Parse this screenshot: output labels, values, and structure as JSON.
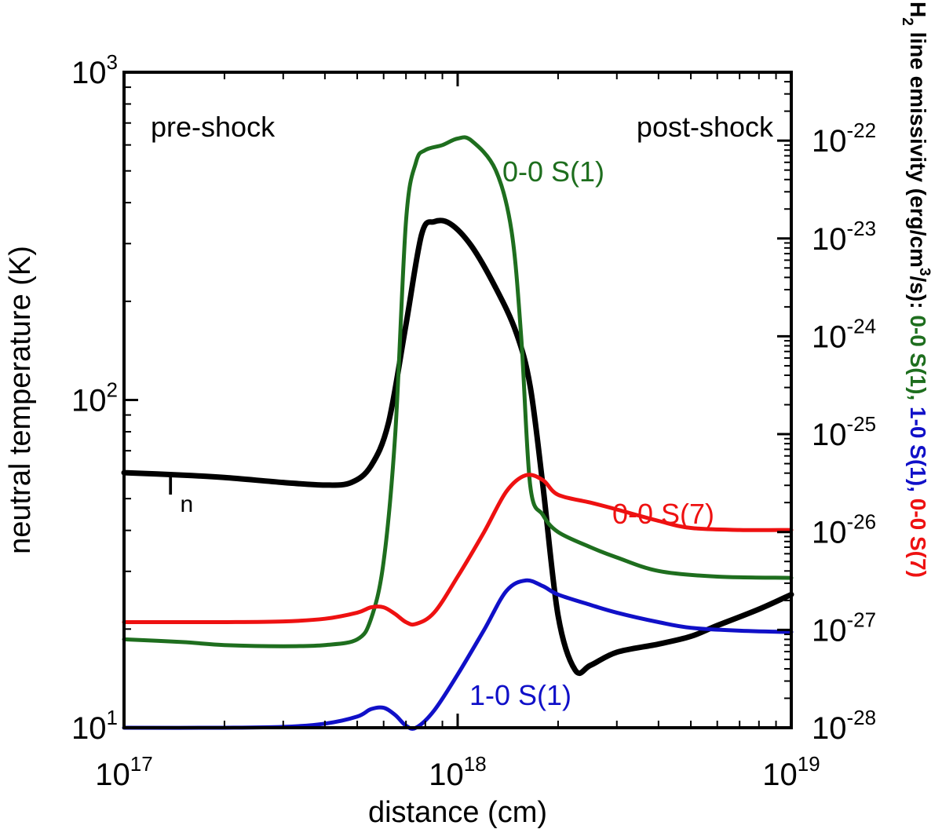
{
  "chart_data": {
    "type": "line",
    "title": "",
    "xlabel": "distance (cm)",
    "ylabel": "neutral temperature (K)",
    "y2label": {
      "prefix": "H",
      "prefix_sub": "2",
      "text_a": " line emissivity (erg/cm",
      "text_sup": "3",
      "text_b": "/s): ",
      "parts": [
        {
          "text": "0-0 S(1)",
          "color": "#1e6e1e"
        },
        {
          "text": ", ",
          "color": "#1e6e1e"
        },
        {
          "text": "1-0 S(1)",
          "color": "#1010c8"
        },
        {
          "text": ", ",
          "color": "#1010c8"
        },
        {
          "text": "0-0 S(7)",
          "color": "#ee1111"
        }
      ]
    },
    "x_scale": "log",
    "xlim": [
      1e+17,
      1e+19
    ],
    "y_scale": "log",
    "ylim": [
      10,
      1000
    ],
    "y2_scale": "log",
    "y2lim": [
      1e-28,
      5e-22
    ],
    "x_ticks": [
      {
        "base": "10",
        "exp": "17"
      },
      {
        "base": "10",
        "exp": "18"
      },
      {
        "base": "10",
        "exp": "19"
      }
    ],
    "y_ticks": [
      {
        "base": "10",
        "exp": "1"
      },
      {
        "base": "10",
        "exp": "2"
      },
      {
        "base": "10",
        "exp": "3"
      }
    ],
    "y2_ticks": [
      {
        "base": "10",
        "exp": "-28"
      },
      {
        "base": "10",
        "exp": "-27"
      },
      {
        "base": "10",
        "exp": "-26"
      },
      {
        "base": "10",
        "exp": "-25"
      },
      {
        "base": "10",
        "exp": "-24"
      },
      {
        "base": "10",
        "exp": "-23"
      },
      {
        "base": "10",
        "exp": "-22"
      }
    ],
    "series": [
      {
        "name": "T_n",
        "axis": "left",
        "color": "#000000",
        "x": [
          1e+17,
          1.5e+17,
          2e+17,
          3e+17,
          4e+17,
          4.8e+17,
          5.5e+17,
          6.2e+17,
          7e+17,
          7.8e+17,
          8.5e+17,
          9.5e+17,
          1.1e+18,
          1.3e+18,
          1.5e+18,
          1.65e+18,
          1.8e+18,
          2e+18,
          2.25e+18,
          2.5e+18,
          3e+18,
          4e+18,
          5e+18,
          6e+18,
          8e+18,
          1e+19
        ],
        "y": [
          60,
          59,
          58,
          56,
          55,
          56,
          63,
          85,
          170,
          320,
          350,
          345,
          295,
          220,
          160,
          110,
          55,
          22,
          15,
          15.5,
          17,
          18,
          19,
          20.5,
          23,
          25.5
        ]
      },
      {
        "name": "0-0 S(1)",
        "axis": "right",
        "color": "#1e6e1e",
        "x": [
          1e+17,
          1.5e+17,
          2e+17,
          3e+17,
          4e+17,
          5e+17,
          5.5e+17,
          6e+17,
          6.5e+17,
          7e+17,
          7.5e+17,
          8e+17,
          9e+17,
          1e+18,
          1.1e+18,
          1.3e+18,
          1.45e+18,
          1.55e+18,
          1.65e+18,
          1.8e+18,
          2e+18,
          2.5e+18,
          3e+18,
          4e+18,
          6e+18,
          1e+19
        ],
        "y": [
          8e-28,
          7.5e-28,
          7e-28,
          6.8e-28,
          7e-28,
          8e-28,
          1.3e-27,
          5e-27,
          1e-25,
          1.5e-23,
          6e-23,
          8e-23,
          9e-23,
          1.05e-22,
          1e-22,
          5e-23,
          1.2e-23,
          1e-24,
          3e-26,
          1.5e-26,
          1e-26,
          7e-27,
          5.5e-27,
          4e-27,
          3.5e-27,
          3.4e-27
        ]
      },
      {
        "name": "1-0 S(1)",
        "axis": "right",
        "color": "#1010c8",
        "x": [
          1e+17,
          2e+17,
          3e+17,
          4e+17,
          5e+17,
          5.5e+17,
          6e+17,
          6.5e+17,
          7e+17,
          7.5e+17,
          8.5e+17,
          1e+18,
          1.2e+18,
          1.4e+18,
          1.6e+18,
          1.8e+18,
          2e+18,
          2.5e+18,
          3e+18,
          4e+18,
          5e+18,
          7e+18,
          1e+19
        ],
        "y": [
          1e-28,
          1e-28,
          1.02e-28,
          1.1e-28,
          1.3e-28,
          1.55e-28,
          1.6e-28,
          1.35e-28,
          1.05e-28,
          1e-28,
          1.5e-28,
          3.5e-28,
          1e-27,
          2.5e-27,
          3.2e-27,
          2.8e-27,
          2.3e-27,
          1.8e-27,
          1.5e-27,
          1.2e-27,
          1.05e-27,
          9.8e-28,
          9.5e-28
        ]
      },
      {
        "name": "0-0 S(7)",
        "axis": "right",
        "color": "#ee1111",
        "x": [
          1e+17,
          2e+17,
          3e+17,
          4e+17,
          5e+17,
          5.5e+17,
          6e+17,
          6.5e+17,
          7e+17,
          7.5e+17,
          8.5e+17,
          1e+18,
          1.2e+18,
          1.4e+18,
          1.6e+18,
          1.8e+18,
          2e+18,
          2.5e+18,
          3e+18,
          4e+18,
          5e+18,
          7e+18,
          1e+19
        ],
        "y": [
          1.2e-27,
          1.2e-27,
          1.22e-27,
          1.3e-27,
          1.5e-27,
          1.7e-27,
          1.7e-27,
          1.45e-27,
          1.2e-27,
          1.15e-27,
          1.5e-27,
          3.5e-27,
          1e-26,
          2.6e-26,
          3.8e-26,
          3.4e-26,
          2.4e-26,
          2e-26,
          1.7e-26,
          1.3e-26,
          1.1e-26,
          1.05e-26,
          1.05e-26
        ]
      }
    ],
    "annotations": [
      {
        "text": "pre-shock",
        "color": "#000000"
      },
      {
        "text": "post-shock",
        "color": "#000000"
      },
      {
        "text": "0-0 S(1)",
        "color": "#1e6e1e"
      },
      {
        "text": "0-0 S(7)",
        "color": "#ee1111"
      },
      {
        "text": "1-0 S(1)",
        "color": "#1010c8"
      },
      {
        "text": "T",
        "sub": "n",
        "color": "#000000"
      }
    ]
  }
}
